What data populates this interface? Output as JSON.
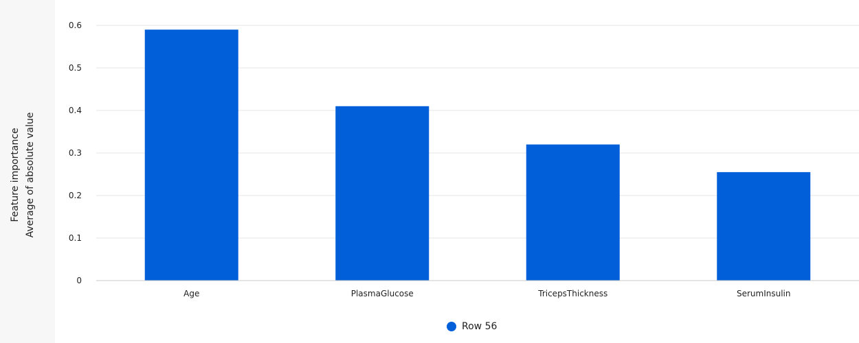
{
  "chart_data": {
    "type": "bar",
    "ylabel_lines": [
      "Feature importance",
      "Average of absolute value"
    ],
    "xlabel": "",
    "categories": [
      "Age",
      "PlasmaGlucose",
      "TricepsThickness",
      "SerumInsulin"
    ],
    "series": [
      {
        "name": "Row 56",
        "values": [
          0.59,
          0.41,
          0.32,
          0.255
        ],
        "color": "#005fd9"
      }
    ],
    "y_ticks": [
      "0",
      "0.1",
      "0.2",
      "0.3",
      "0.4",
      "0.5",
      "0.6"
    ],
    "ylim": [
      0,
      0.6
    ],
    "grid": true,
    "legend_position": "bottom-center"
  }
}
